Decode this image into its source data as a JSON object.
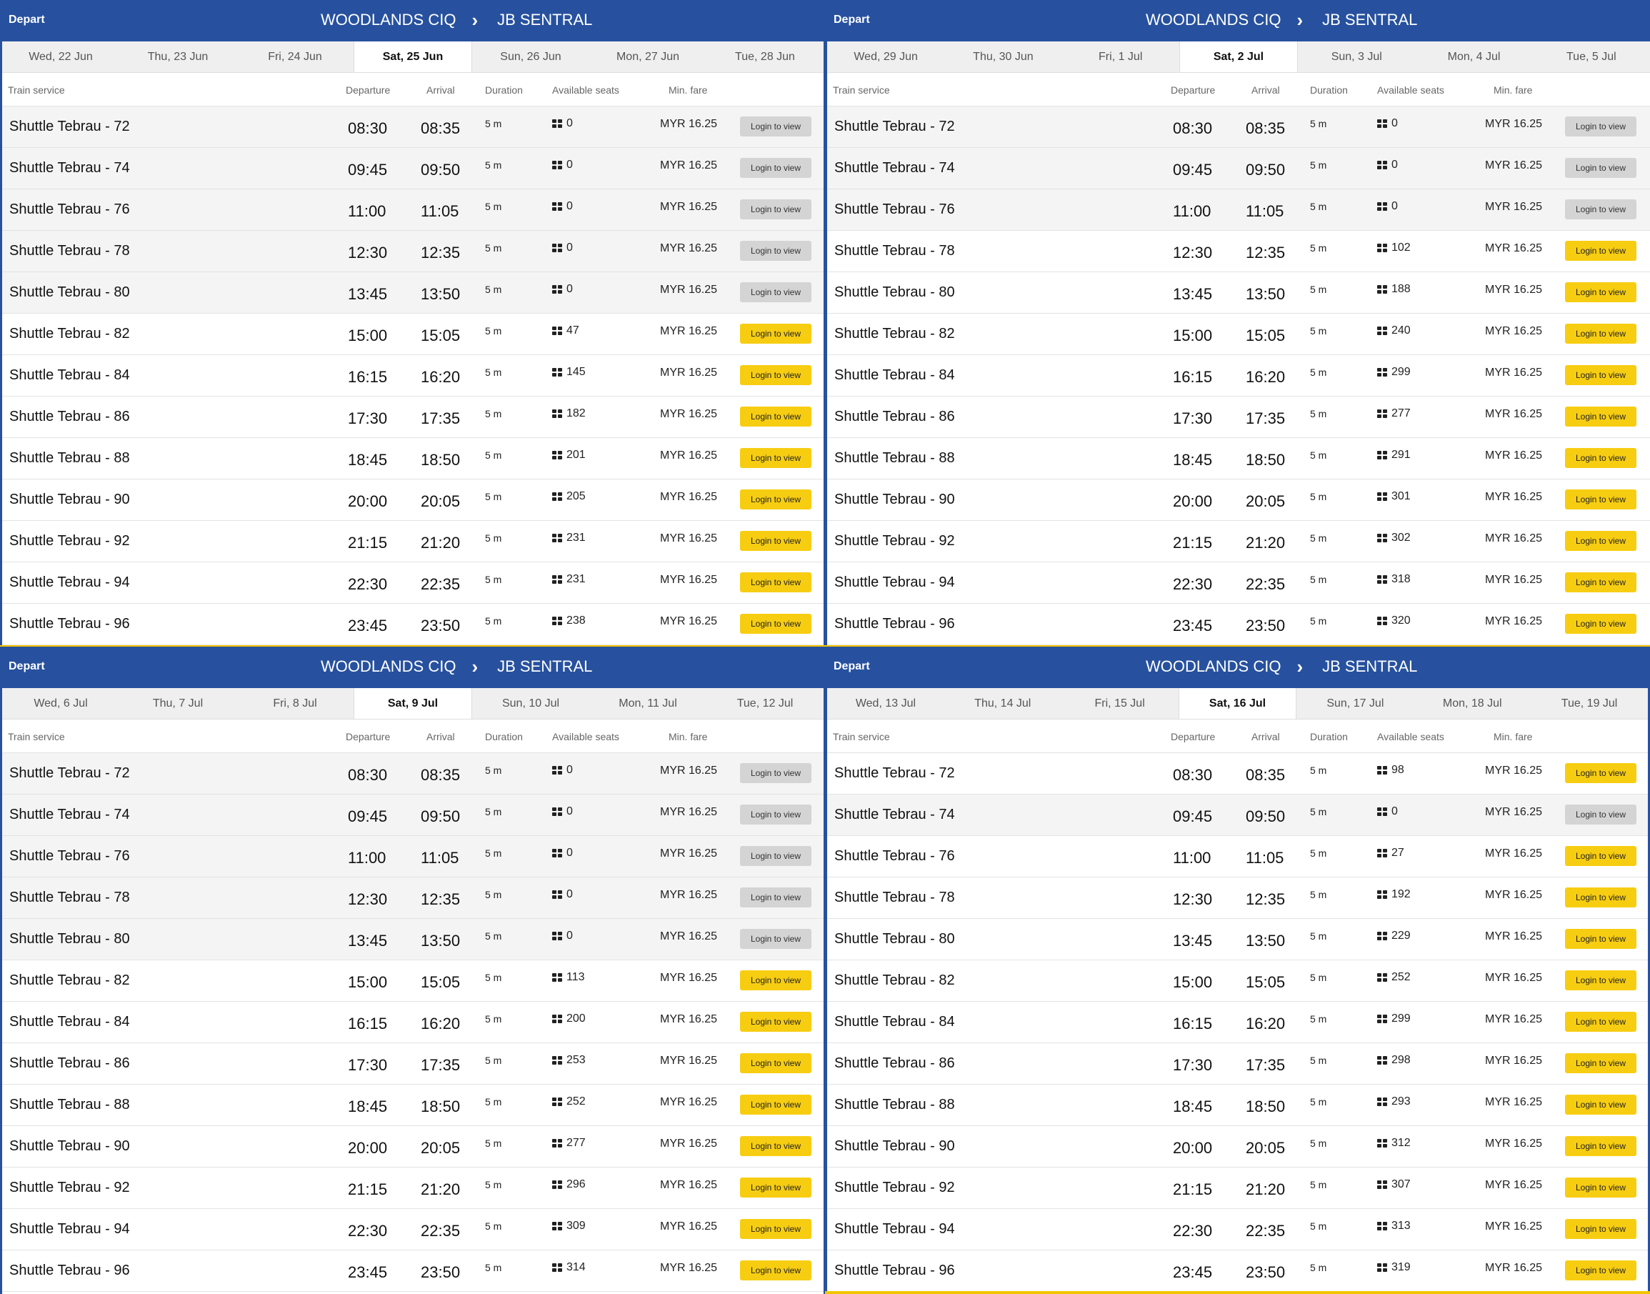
{
  "header": {
    "depart_label": "Depart",
    "origin": "WOODLANDS CIQ",
    "destination": "JB SENTRAL"
  },
  "columns": {
    "service": "Train service",
    "departure": "Departure",
    "arrival": "Arrival",
    "duration": "Duration",
    "seats": "Available seats",
    "fare": "Min. fare"
  },
  "button_label": "Login to view",
  "colors": {
    "brand_blue": "#27519f",
    "button_active": "#f7cd12",
    "button_disabled": "#d4d4d4"
  },
  "schedule": [
    {
      "service": "Shuttle Tebrau - 72",
      "departure": "08:30",
      "arrival": "08:35"
    },
    {
      "service": "Shuttle Tebrau - 74",
      "departure": "09:45",
      "arrival": "09:50"
    },
    {
      "service": "Shuttle Tebrau - 76",
      "departure": "11:00",
      "arrival": "11:05"
    },
    {
      "service": "Shuttle Tebrau - 78",
      "departure": "12:30",
      "arrival": "12:35"
    },
    {
      "service": "Shuttle Tebrau - 80",
      "departure": "13:45",
      "arrival": "13:50"
    },
    {
      "service": "Shuttle Tebrau - 82",
      "departure": "15:00",
      "arrival": "15:05"
    },
    {
      "service": "Shuttle Tebrau - 84",
      "departure": "16:15",
      "arrival": "16:20"
    },
    {
      "service": "Shuttle Tebrau - 86",
      "departure": "17:30",
      "arrival": "17:35"
    },
    {
      "service": "Shuttle Tebrau - 88",
      "departure": "18:45",
      "arrival": "18:50"
    },
    {
      "service": "Shuttle Tebrau - 90",
      "departure": "20:00",
      "arrival": "20:05"
    },
    {
      "service": "Shuttle Tebrau - 92",
      "departure": "21:15",
      "arrival": "21:20"
    },
    {
      "service": "Shuttle Tebrau - 94",
      "departure": "22:30",
      "arrival": "22:35"
    },
    {
      "service": "Shuttle Tebrau - 96",
      "departure": "23:45",
      "arrival": "23:50"
    }
  ],
  "duration": "5 m",
  "fare": "MYR 16.25",
  "panels": [
    {
      "dates": [
        "Wed, 22 Jun",
        "Thu, 23 Jun",
        "Fri, 24 Jun",
        "Sat, 25 Jun",
        "Sun, 26 Jun",
        "Mon, 27 Jun",
        "Tue, 28 Jun"
      ],
      "active_date": 3,
      "seats": [
        "0",
        "0",
        "0",
        "0",
        "0",
        "47",
        "145",
        "182",
        "201",
        "205",
        "231",
        "231",
        "238"
      ]
    },
    {
      "dates": [
        "Wed, 29 Jun",
        "Thu, 30 Jun",
        "Fri, 1 Jul",
        "Sat, 2 Jul",
        "Sun, 3 Jul",
        "Mon, 4 Jul",
        "Tue, 5 Jul"
      ],
      "active_date": 3,
      "seats": [
        "0",
        "0",
        "0",
        "102",
        "188",
        "240",
        "299",
        "277",
        "291",
        "301",
        "302",
        "318",
        "320"
      ]
    },
    {
      "dates": [
        "Wed, 6 Jul",
        "Thu, 7 Jul",
        "Fri, 8 Jul",
        "Sat, 9 Jul",
        "Sun, 10 Jul",
        "Mon, 11 Jul",
        "Tue, 12 Jul"
      ],
      "active_date": 3,
      "seats": [
        "0",
        "0",
        "0",
        "0",
        "0",
        "113",
        "200",
        "253",
        "252",
        "277",
        "296",
        "309",
        "314"
      ]
    },
    {
      "dates": [
        "Wed, 13 Jul",
        "Thu, 14 Jul",
        "Fri, 15 Jul",
        "Sat, 16 Jul",
        "Sun, 17 Jul",
        "Mon, 18 Jul",
        "Tue, 19 Jul"
      ],
      "active_date": 3,
      "seats": [
        "98",
        "0",
        "27",
        "192",
        "229",
        "252",
        "299",
        "298",
        "293",
        "312",
        "307",
        "313",
        "319"
      ]
    }
  ]
}
